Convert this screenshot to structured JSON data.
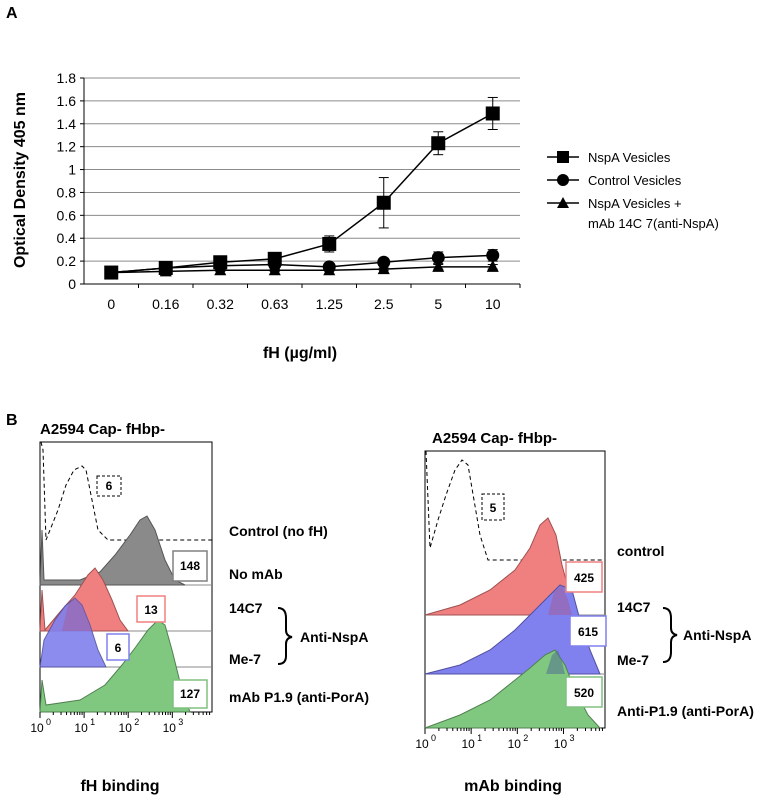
{
  "panel_a": {
    "label": "A",
    "chart_data": {
      "type": "line",
      "ylabel": "Optical Density 405 nm",
      "xlabel": "fH (µg/ml)",
      "categories": [
        "0",
        "0.16",
        "0.32",
        "0.63",
        "1.25",
        "2.5",
        "5",
        "10"
      ],
      "ylim": [
        0,
        1.8
      ],
      "yticks": [
        "0",
        "0.2",
        "0.4",
        "0.6",
        "0.8",
        "1",
        "1.2",
        "1.4",
        "1.6",
        "1.8"
      ],
      "grid": true,
      "legend_position": "right",
      "series": [
        {
          "name": "NspA Vesicles",
          "marker": "square",
          "values": [
            0.1,
            0.14,
            0.19,
            0.22,
            0.35,
            0.71,
            1.23,
            1.49
          ],
          "errors": [
            0.02,
            0.02,
            0.03,
            0.03,
            0.07,
            0.22,
            0.1,
            0.14
          ]
        },
        {
          "name": "Control Vesicles",
          "marker": "circle",
          "values": [
            0.1,
            0.14,
            0.16,
            0.17,
            0.15,
            0.19,
            0.23,
            0.25
          ],
          "errors": [
            0.01,
            0.01,
            0.01,
            0.01,
            0.01,
            0.02,
            0.05,
            0.05
          ]
        },
        {
          "name": "NspA Vesicles + mAb 14C 7(anti-NspA)",
          "marker": "triangle",
          "values": [
            0.1,
            0.11,
            0.12,
            0.12,
            0.12,
            0.13,
            0.15,
            0.15
          ],
          "errors": [
            0.01,
            0.01,
            0.01,
            0.01,
            0.01,
            0.01,
            0.02,
            0.02
          ]
        }
      ],
      "legend_labels": [
        "NspA Vesicles",
        "Control Vesicles",
        "NspA Vesicles +",
        "mAb 14C 7(anti-NspA)"
      ]
    }
  },
  "panel_b": {
    "label": "B",
    "left": {
      "title": "A2594 Cap- fHbp-",
      "xlabel": "fH binding",
      "rows": [
        {
          "name": "Control (no fH)",
          "mfi": "6",
          "color": "#ffffff",
          "style": "dashed"
        },
        {
          "name": "No mAb",
          "mfi": "148",
          "color": "#8a8a8a",
          "box": "#808080"
        },
        {
          "name": "14C7",
          "mfi": "13",
          "color": "#f08080",
          "box": "#f08080"
        },
        {
          "name": "Me-7",
          "mfi": "6",
          "color": "#8080ee",
          "box": "#8080ee"
        },
        {
          "name": "mAb P1.9 (anti-PorA)",
          "mfi": "127",
          "color": "#80c880",
          "box": "#80c080"
        }
      ],
      "group_label": "Anti-NspA"
    },
    "right": {
      "title": "A2594 Cap- fHbp-",
      "xlabel": "mAb binding",
      "rows": [
        {
          "name": "control",
          "mfi": "5"
        },
        {
          "name": "14C7",
          "mfi": "425"
        },
        {
          "name": "Me-7",
          "mfi": "615"
        },
        {
          "name": "Anti-P1.9 (anti-PorA)",
          "mfi": "520"
        }
      ],
      "group_label": "Anti-NspA"
    },
    "x_tick_base": "10",
    "x_tick_exps": [
      "0",
      "1",
      "2",
      "3"
    ]
  }
}
